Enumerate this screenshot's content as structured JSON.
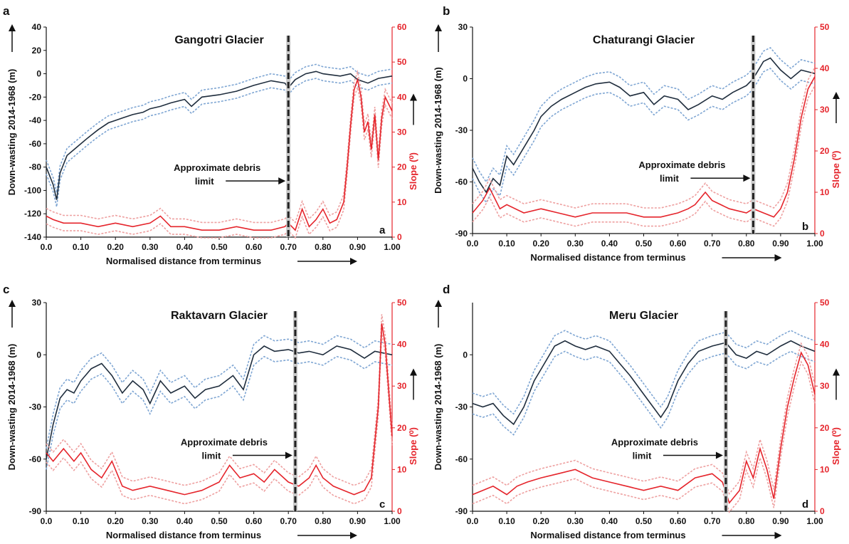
{
  "figure": {
    "shared_xlabel": "Normalised distance from terminus",
    "shared_ylabel": "Down-wasting 2014-1968 (m)",
    "shared_y2label": "Slope (⁰)",
    "debris_annotation": [
      "Approximate debris",
      "limit"
    ],
    "colors": {
      "downwasting": "#1f2d3d",
      "downwasting_band": "#7fa6d3",
      "slope": "#e5242b",
      "slope_band": "#eea0a0",
      "debris_line": "#222222",
      "debris_band": "#c8c8c8"
    }
  },
  "chart_data": [
    {
      "panel": "a",
      "corner_label": "a",
      "title": "Gangotri Glacier",
      "type": "line",
      "xlabel": "Normalised distance from terminus",
      "ylabel": "Down-wasting 2014-1968 (m)",
      "y2label": "Slope (⁰)",
      "xlim": [
        0,
        1
      ],
      "ylim": [
        -140,
        40
      ],
      "y2lim": [
        0,
        60
      ],
      "xticks": [
        "0.0",
        "0.10",
        "0.20",
        "0.30",
        "0.40",
        "0.50",
        "0.60",
        "0.70",
        "0.80",
        "0.90",
        "1.00"
      ],
      "yticks": [
        "-140",
        "-120",
        "-100",
        "-80",
        "-60",
        "-40",
        "-20",
        "0",
        "20",
        "40"
      ],
      "y2ticks": [
        "0",
        "10",
        "20",
        "30",
        "40",
        "50",
        "60"
      ],
      "debris_limit_x": 0.7,
      "series": [
        {
          "name": "",
          "axis": "left",
          "role": "downwasting",
          "x": [
            0,
            0.02,
            0.03,
            0.04,
            0.06,
            0.08,
            0.1,
            0.12,
            0.15,
            0.18,
            0.2,
            0.22,
            0.25,
            0.28,
            0.3,
            0.33,
            0.36,
            0.4,
            0.42,
            0.45,
            0.5,
            0.55,
            0.6,
            0.65,
            0.69,
            0.7,
            0.72,
            0.75,
            0.78,
            0.8,
            0.85,
            0.88,
            0.9,
            0.93,
            0.96,
            1.0
          ],
          "y": [
            -80,
            -95,
            -108,
            -85,
            -70,
            -65,
            -60,
            -55,
            -48,
            -42,
            -40,
            -38,
            -35,
            -33,
            -30,
            -28,
            -25,
            -22,
            -28,
            -20,
            -18,
            -15,
            -10,
            -6,
            -8,
            -12,
            -5,
            0,
            2,
            0,
            -2,
            0,
            -5,
            -8,
            -4,
            -2
          ]
        },
        {
          "name": "",
          "axis": "right",
          "role": "slope",
          "x": [
            0,
            0.02,
            0.05,
            0.1,
            0.15,
            0.2,
            0.25,
            0.3,
            0.33,
            0.36,
            0.4,
            0.45,
            0.5,
            0.55,
            0.6,
            0.65,
            0.69,
            0.7,
            0.72,
            0.74,
            0.76,
            0.78,
            0.8,
            0.82,
            0.84,
            0.86,
            0.87,
            0.88,
            0.89,
            0.9,
            0.91,
            0.92,
            0.93,
            0.94,
            0.95,
            0.96,
            0.97,
            0.98,
            1.0
          ],
          "y": [
            6,
            5,
            4,
            4,
            3,
            4,
            3,
            4,
            6,
            3,
            3,
            2,
            2,
            3,
            2,
            2,
            3,
            4,
            2,
            8,
            3,
            5,
            8,
            4,
            5,
            10,
            20,
            32,
            42,
            45,
            40,
            30,
            33,
            25,
            35,
            22,
            34,
            40,
            36
          ]
        }
      ]
    },
    {
      "panel": "b",
      "corner_label": "b",
      "title": "Chaturangi Glacier",
      "type": "line",
      "xlabel": "Normalised distance from terminus",
      "ylabel": "Down-wasting 2014-1968 (m)",
      "y2label": "Slope (⁰)",
      "xlim": [
        0,
        1
      ],
      "ylim": [
        -90,
        30
      ],
      "y2lim": [
        0,
        50
      ],
      "xticks": [
        "0.0",
        "0.10",
        "0.20",
        "0.30",
        "0.40",
        "0.50",
        "0.60",
        "0.70",
        "0.80",
        "0.90",
        "1.00"
      ],
      "yticks": [
        "-90",
        "-60",
        "-30",
        "0",
        "30"
      ],
      "y2ticks": [
        "0",
        "10",
        "20",
        "30",
        "40",
        "50"
      ],
      "debris_limit_x": 0.82,
      "series": [
        {
          "name": "",
          "axis": "left",
          "role": "downwasting",
          "x": [
            0,
            0.02,
            0.04,
            0.06,
            0.08,
            0.1,
            0.12,
            0.15,
            0.18,
            0.2,
            0.23,
            0.26,
            0.3,
            0.33,
            0.36,
            0.4,
            0.43,
            0.46,
            0.5,
            0.53,
            0.56,
            0.6,
            0.63,
            0.66,
            0.7,
            0.73,
            0.76,
            0.8,
            0.82,
            0.85,
            0.87,
            0.9,
            0.93,
            0.96,
            1.0
          ],
          "y": [
            -52,
            -60,
            -66,
            -58,
            -62,
            -45,
            -50,
            -40,
            -30,
            -22,
            -16,
            -12,
            -8,
            -5,
            -3,
            -2,
            -5,
            -10,
            -8,
            -15,
            -10,
            -12,
            -18,
            -15,
            -10,
            -12,
            -8,
            -4,
            0,
            10,
            12,
            5,
            0,
            5,
            3
          ]
        },
        {
          "name": "",
          "axis": "right",
          "role": "slope",
          "x": [
            0,
            0.03,
            0.05,
            0.08,
            0.1,
            0.15,
            0.2,
            0.25,
            0.3,
            0.35,
            0.4,
            0.45,
            0.5,
            0.55,
            0.6,
            0.63,
            0.65,
            0.68,
            0.7,
            0.75,
            0.8,
            0.82,
            0.85,
            0.88,
            0.9,
            0.92,
            0.94,
            0.96,
            0.98,
            1.0
          ],
          "y": [
            5,
            8,
            11,
            6,
            7,
            5,
            6,
            5,
            4,
            5,
            5,
            5,
            4,
            4,
            5,
            6,
            7,
            10,
            8,
            6,
            5,
            6,
            5,
            4,
            6,
            10,
            18,
            28,
            35,
            38
          ]
        }
      ]
    },
    {
      "panel": "c",
      "corner_label": "c",
      "title": "Raktavarn Glacier",
      "type": "line",
      "xlabel": "Normalised distance from terminus",
      "ylabel": "Down-wasting 2014-1968 (m)",
      "y2label": "Slope (⁰)",
      "xlim": [
        0,
        1
      ],
      "ylim": [
        -90,
        30
      ],
      "y2lim": [
        0,
        50
      ],
      "xticks": [
        "0.0",
        "0.10",
        "0.20",
        "0.30",
        "0.40",
        "0.50",
        "0.60",
        "0.70",
        "0.80",
        "0.90",
        "1.00"
      ],
      "yticks": [
        "-90",
        "-60",
        "-30",
        "0",
        "30"
      ],
      "y2ticks": [
        "0",
        "10",
        "20",
        "30",
        "40",
        "50"
      ],
      "debris_limit_x": 0.72,
      "series": [
        {
          "name": "",
          "axis": "left",
          "role": "downwasting",
          "x": [
            0,
            0.02,
            0.04,
            0.06,
            0.08,
            0.1,
            0.13,
            0.16,
            0.19,
            0.22,
            0.25,
            0.28,
            0.3,
            0.33,
            0.36,
            0.4,
            0.43,
            0.46,
            0.5,
            0.54,
            0.57,
            0.6,
            0.63,
            0.66,
            0.7,
            0.73,
            0.76,
            0.8,
            0.84,
            0.88,
            0.92,
            0.95,
            1.0
          ],
          "y": [
            -60,
            -40,
            -25,
            -20,
            -22,
            -15,
            -8,
            -5,
            -12,
            -22,
            -15,
            -20,
            -28,
            -15,
            -22,
            -18,
            -25,
            -20,
            -18,
            -12,
            -20,
            0,
            5,
            2,
            3,
            1,
            2,
            0,
            5,
            3,
            -2,
            2,
            0
          ]
        },
        {
          "name": "",
          "axis": "right",
          "role": "slope",
          "x": [
            0,
            0.02,
            0.05,
            0.08,
            0.1,
            0.13,
            0.16,
            0.19,
            0.22,
            0.25,
            0.3,
            0.35,
            0.4,
            0.45,
            0.5,
            0.53,
            0.56,
            0.6,
            0.63,
            0.66,
            0.7,
            0.73,
            0.76,
            0.78,
            0.8,
            0.83,
            0.86,
            0.89,
            0.92,
            0.94,
            0.96,
            0.97,
            0.98,
            1.0
          ],
          "y": [
            14,
            12,
            15,
            12,
            14,
            10,
            8,
            12,
            6,
            5,
            6,
            5,
            4,
            5,
            7,
            11,
            8,
            9,
            7,
            10,
            7,
            6,
            8,
            11,
            8,
            6,
            5,
            4,
            5,
            8,
            25,
            45,
            40,
            18
          ]
        }
      ]
    },
    {
      "panel": "d",
      "corner_label": "d",
      "title": "Meru Glacier",
      "type": "line",
      "xlabel": "Normalised distance from terminus",
      "ylabel": "Down-wasting 2014-1968 (m)",
      "y2label": "Slope (⁰)",
      "xlim": [
        0,
        1
      ],
      "ylim": [
        -90,
        30
      ],
      "y2lim": [
        0,
        50
      ],
      "xticks": [
        "0.0",
        "0.10",
        "0.20",
        "0.30",
        "0.40",
        "0.50",
        "0.60",
        "0.70",
        "0.80",
        "0.90",
        "1.00"
      ],
      "yticks": [
        "-90",
        "-60",
        "-30",
        "0"
      ],
      "y2ticks": [
        "0",
        "10",
        "20",
        "30",
        "40",
        "50"
      ],
      "debris_limit_x": 0.74,
      "series": [
        {
          "name": "",
          "axis": "left",
          "role": "downwasting",
          "x": [
            0,
            0.03,
            0.06,
            0.09,
            0.12,
            0.15,
            0.18,
            0.21,
            0.24,
            0.27,
            0.3,
            0.33,
            0.36,
            0.4,
            0.43,
            0.46,
            0.49,
            0.52,
            0.55,
            0.57,
            0.6,
            0.63,
            0.66,
            0.7,
            0.74,
            0.77,
            0.8,
            0.83,
            0.86,
            0.9,
            0.93,
            0.96,
            1.0
          ],
          "y": [
            -28,
            -30,
            -28,
            -35,
            -40,
            -30,
            -15,
            -5,
            5,
            8,
            5,
            3,
            5,
            2,
            -5,
            -12,
            -20,
            -28,
            -36,
            -30,
            -15,
            -5,
            2,
            5,
            7,
            0,
            -2,
            2,
            0,
            5,
            8,
            5,
            2
          ]
        },
        {
          "name": "",
          "axis": "right",
          "role": "slope",
          "x": [
            0,
            0.03,
            0.06,
            0.1,
            0.13,
            0.16,
            0.2,
            0.25,
            0.3,
            0.35,
            0.4,
            0.45,
            0.5,
            0.55,
            0.6,
            0.65,
            0.7,
            0.73,
            0.75,
            0.78,
            0.8,
            0.82,
            0.84,
            0.86,
            0.88,
            0.9,
            0.92,
            0.94,
            0.96,
            0.98,
            1.0
          ],
          "y": [
            4,
            5,
            6,
            4,
            6,
            7,
            8,
            9,
            10,
            8,
            7,
            6,
            5,
            6,
            5,
            8,
            9,
            7,
            2,
            5,
            12,
            8,
            15,
            10,
            3,
            15,
            25,
            32,
            38,
            35,
            28
          ]
        }
      ]
    }
  ]
}
